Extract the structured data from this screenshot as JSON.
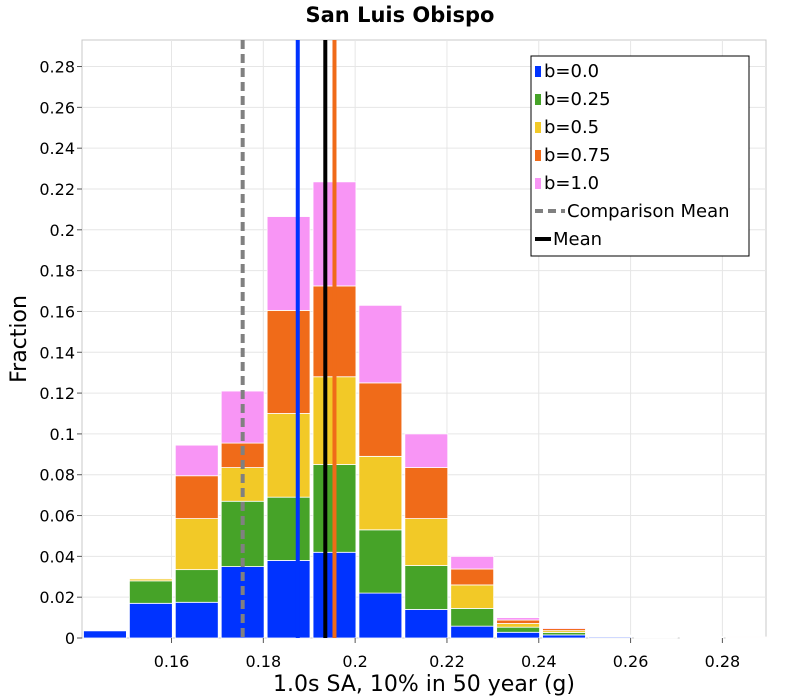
{
  "chart_data": {
    "type": "bar",
    "stacked": true,
    "title": "San Luis Obispo",
    "xlabel": "1.0s SA, 10% in 50 year (g)",
    "ylabel": "Fraction",
    "xlim": [
      0.1405,
      0.2895
    ],
    "ylim": [
      0,
      0.293
    ],
    "bin_width": 0.01,
    "grid": true,
    "legend_position": "top-right",
    "x_ticks": [
      0.16,
      0.18,
      0.2,
      0.22,
      0.24,
      0.26,
      0.28
    ],
    "x_tick_labels": [
      "0.16",
      "0.18",
      "0.2",
      "0.22",
      "0.24",
      "0.26",
      "0.28"
    ],
    "y_ticks": [
      0,
      0.02,
      0.04,
      0.06,
      0.08,
      0.1,
      0.12,
      0.14,
      0.16,
      0.18,
      0.2,
      0.22,
      0.24,
      0.26,
      0.28
    ],
    "y_tick_labels": [
      "0",
      "0.02",
      "0.04",
      "0.06",
      "0.08",
      "0.1",
      "0.12",
      "0.14",
      "0.16",
      "0.18",
      "0.2",
      "0.22",
      "0.24",
      "0.26",
      "0.28"
    ],
    "bin_centers": [
      0.1455,
      0.1555,
      0.1655,
      0.1755,
      0.1855,
      0.1955,
      0.2055,
      0.2155,
      0.2255,
      0.2355,
      0.2455,
      0.2555,
      0.2655,
      0.2755,
      0.2855
    ],
    "series": [
      {
        "name": "b=0.0",
        "color": "#0033ff",
        "values": [
          0.0035,
          0.017,
          0.0175,
          0.035,
          0.038,
          0.042,
          0.022,
          0.014,
          0.0058,
          0.0028,
          0.0015,
          0.0006,
          0.0003,
          0.0001,
          0.0001
        ]
      },
      {
        "name": "b=0.25",
        "color": "#46a328",
        "values": [
          0,
          0.011,
          0.016,
          0.032,
          0.031,
          0.043,
          0.031,
          0.0215,
          0.0087,
          0.0025,
          0.0012,
          0.0002,
          0.0002,
          0.0001,
          0.0001
        ]
      },
      {
        "name": "b=0.5",
        "color": "#f2c927",
        "values": [
          0,
          0.001,
          0.025,
          0.0165,
          0.041,
          0.043,
          0.036,
          0.023,
          0.0115,
          0.0018,
          0.0009,
          0.0002,
          0.0001,
          0.0001,
          0.0001
        ]
      },
      {
        "name": "b=0.75",
        "color": "#f06b19",
        "values": [
          0,
          0.0004,
          0.021,
          0.012,
          0.0505,
          0.0445,
          0.036,
          0.025,
          0.0078,
          0.0017,
          0.001,
          0.0002,
          0.0002,
          0.0002,
          0.0002
        ]
      },
      {
        "name": "b=1.0",
        "color": "#f895f5",
        "values": [
          0,
          0,
          0.015,
          0.0255,
          0.046,
          0.051,
          0.038,
          0.0165,
          0.0062,
          0.0012,
          0.0005,
          0.0002,
          0.0001,
          0.0001,
          0
        ]
      }
    ],
    "vertical_lines": [
      {
        "name": "b=0.0",
        "x": 0.1875,
        "color": "#0033ff",
        "style": "solid",
        "in_legend": false
      },
      {
        "name": "b=0.75",
        "x": 0.1955,
        "color": "#f06b19",
        "style": "solid",
        "in_legend": false
      },
      {
        "name": "Comparison Mean",
        "x": 0.1755,
        "color": "#808080",
        "style": "dashed",
        "in_legend": true
      },
      {
        "name": "Mean",
        "x": 0.1935,
        "color": "#000000",
        "style": "solid",
        "in_legend": true
      }
    ]
  }
}
